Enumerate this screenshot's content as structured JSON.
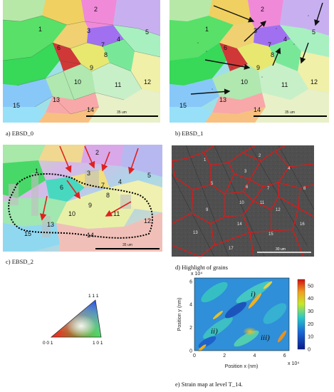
{
  "captions": {
    "a": "a)    EBSD_0",
    "b": "b)    EBSD_1",
    "c": "c)    EBSD_2",
    "d": "d)    Highlight of grains",
    "e": "e)    Strain map at level T_14."
  },
  "ebsd": {
    "grain_labels": [
      "1",
      "2",
      "3",
      "4",
      "5",
      "6",
      "7",
      "8",
      "9",
      "10",
      "11",
      "12",
      "13",
      "14",
      "15"
    ],
    "scale_bar": "35 um",
    "scale_bar_c": "35 um"
  },
  "sem": {
    "grain_labels": [
      "1",
      "2",
      "3",
      "4",
      "5",
      "6",
      "7",
      "8",
      "9",
      "10",
      "11",
      "12",
      "13",
      "14",
      "15",
      "16",
      "17"
    ],
    "scale_bar": "30 um"
  },
  "ipf": {
    "corner_top": "1 1 1",
    "corner_left": "0 0 1",
    "corner_right": "1 0 1"
  },
  "strain_map": {
    "exponent_y": "x 10⁴",
    "exponent_x": "x 10⁴",
    "ylabel": "Position y (nm)",
    "xlabel": "Position x (nm)",
    "yticks": [
      "0",
      "2",
      "4",
      "6"
    ],
    "xticks": [
      "0",
      "2",
      "4",
      "6"
    ],
    "colorbar_ticks": [
      "0",
      "10",
      "20",
      "30",
      "40",
      "50"
    ],
    "annotations": [
      "i)",
      "ii)",
      "iii)"
    ],
    "colors": {
      "low": "#0a1a8a",
      "mid": "#28c8c8",
      "high": "#d01010"
    }
  }
}
